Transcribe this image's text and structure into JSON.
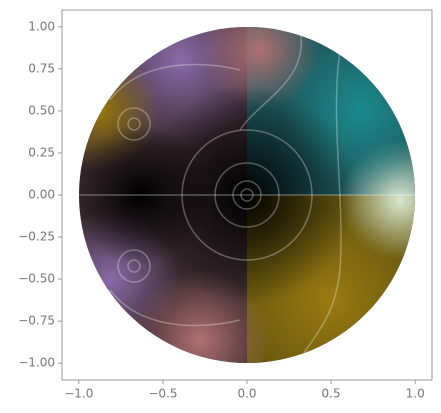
{
  "chart_data": {
    "type": "image",
    "xlim": [
      -1.1,
      1.1
    ],
    "ylim": [
      -1.1,
      1.1
    ],
    "xticks": [
      {
        "value": -1.0,
        "label": "−1.0"
      },
      {
        "value": -0.5,
        "label": "−0.5"
      },
      {
        "value": 0.0,
        "label": "0.0"
      },
      {
        "value": 0.5,
        "label": "0.5"
      },
      {
        "value": 1.0,
        "label": "1.0"
      }
    ],
    "yticks": [
      {
        "value": -1.0,
        "label": "−1.00"
      },
      {
        "value": -0.75,
        "label": "−0.75"
      },
      {
        "value": -0.5,
        "label": "−0.50"
      },
      {
        "value": -0.25,
        "label": "−0.25"
      },
      {
        "value": 0.0,
        "label": "0.00"
      },
      {
        "value": 0.25,
        "label": "0.25"
      },
      {
        "value": 0.5,
        "label": "0.50"
      },
      {
        "value": 0.75,
        "label": "0.75"
      },
      {
        "value": 1.0,
        "label": "1.00"
      }
    ]
  }
}
